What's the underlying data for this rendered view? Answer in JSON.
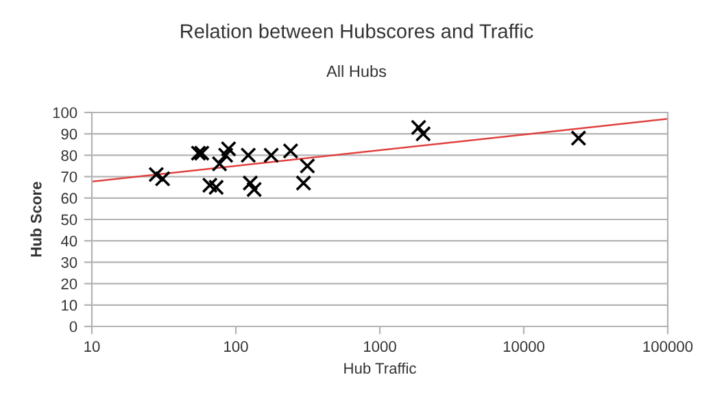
{
  "chart_data": {
    "type": "scatter",
    "title": "Relation between Hubscores and Traffic",
    "subtitle": "All Hubs",
    "xlabel": "Hub Traffic",
    "ylabel": "Hub Score",
    "log": "x",
    "grid": "y",
    "series": [
      {
        "marker": "cross",
        "color": "#000000",
        "x": [
          28,
          31,
          55,
          58,
          66,
          73,
          77,
          85,
          89,
          122,
          126,
          134,
          176,
          240,
          295,
          314,
          1860,
          2000,
          24000
        ],
        "values": [
          71,
          69,
          81,
          81,
          66,
          65,
          76,
          80,
          83,
          80,
          67,
          64,
          80,
          82,
          67,
          75,
          93,
          90,
          88
        ]
      },
      {
        "type": "line",
        "marker": "none",
        "color": "#e0403f",
        "x": [
          10,
          100000
        ],
        "values": [
          67.7,
          97
        ]
      }
    ],
    "xlim": [
      10,
      100000
    ],
    "xticks": [
      10,
      100,
      1000,
      10000,
      100000
    ],
    "ylim": [
      0,
      100
    ],
    "yticks": [
      0,
      10,
      20,
      30,
      40,
      50,
      60,
      70,
      80,
      90,
      100
    ]
  }
}
